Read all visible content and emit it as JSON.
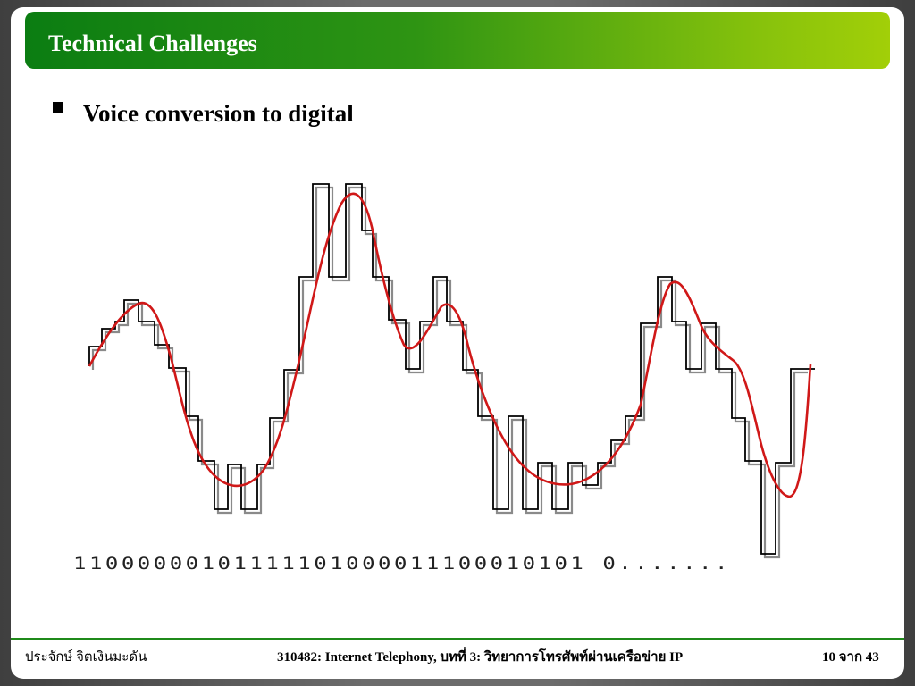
{
  "slide": {
    "title": "Technical Challenges",
    "bullet": "Voice conversion to digital",
    "bit_stream": "11000000101111101000011100010101 0.......",
    "footer": {
      "author": "ประจักษ์ จิตเงินมะดัน",
      "course": "310482: Internet Telephony, บทที่ 3: วิทยาการโทรศัพท์ผ่านเครือข่าย IP",
      "page": "10 จาก 43"
    }
  },
  "colors": {
    "title_green_start": "#0b7d12",
    "title_green_end": "#a2cf08",
    "analog_wave": "#d01818",
    "sample_steps": "#000000"
  },
  "icons": {
    "bullet": "black-square-bullet"
  }
}
